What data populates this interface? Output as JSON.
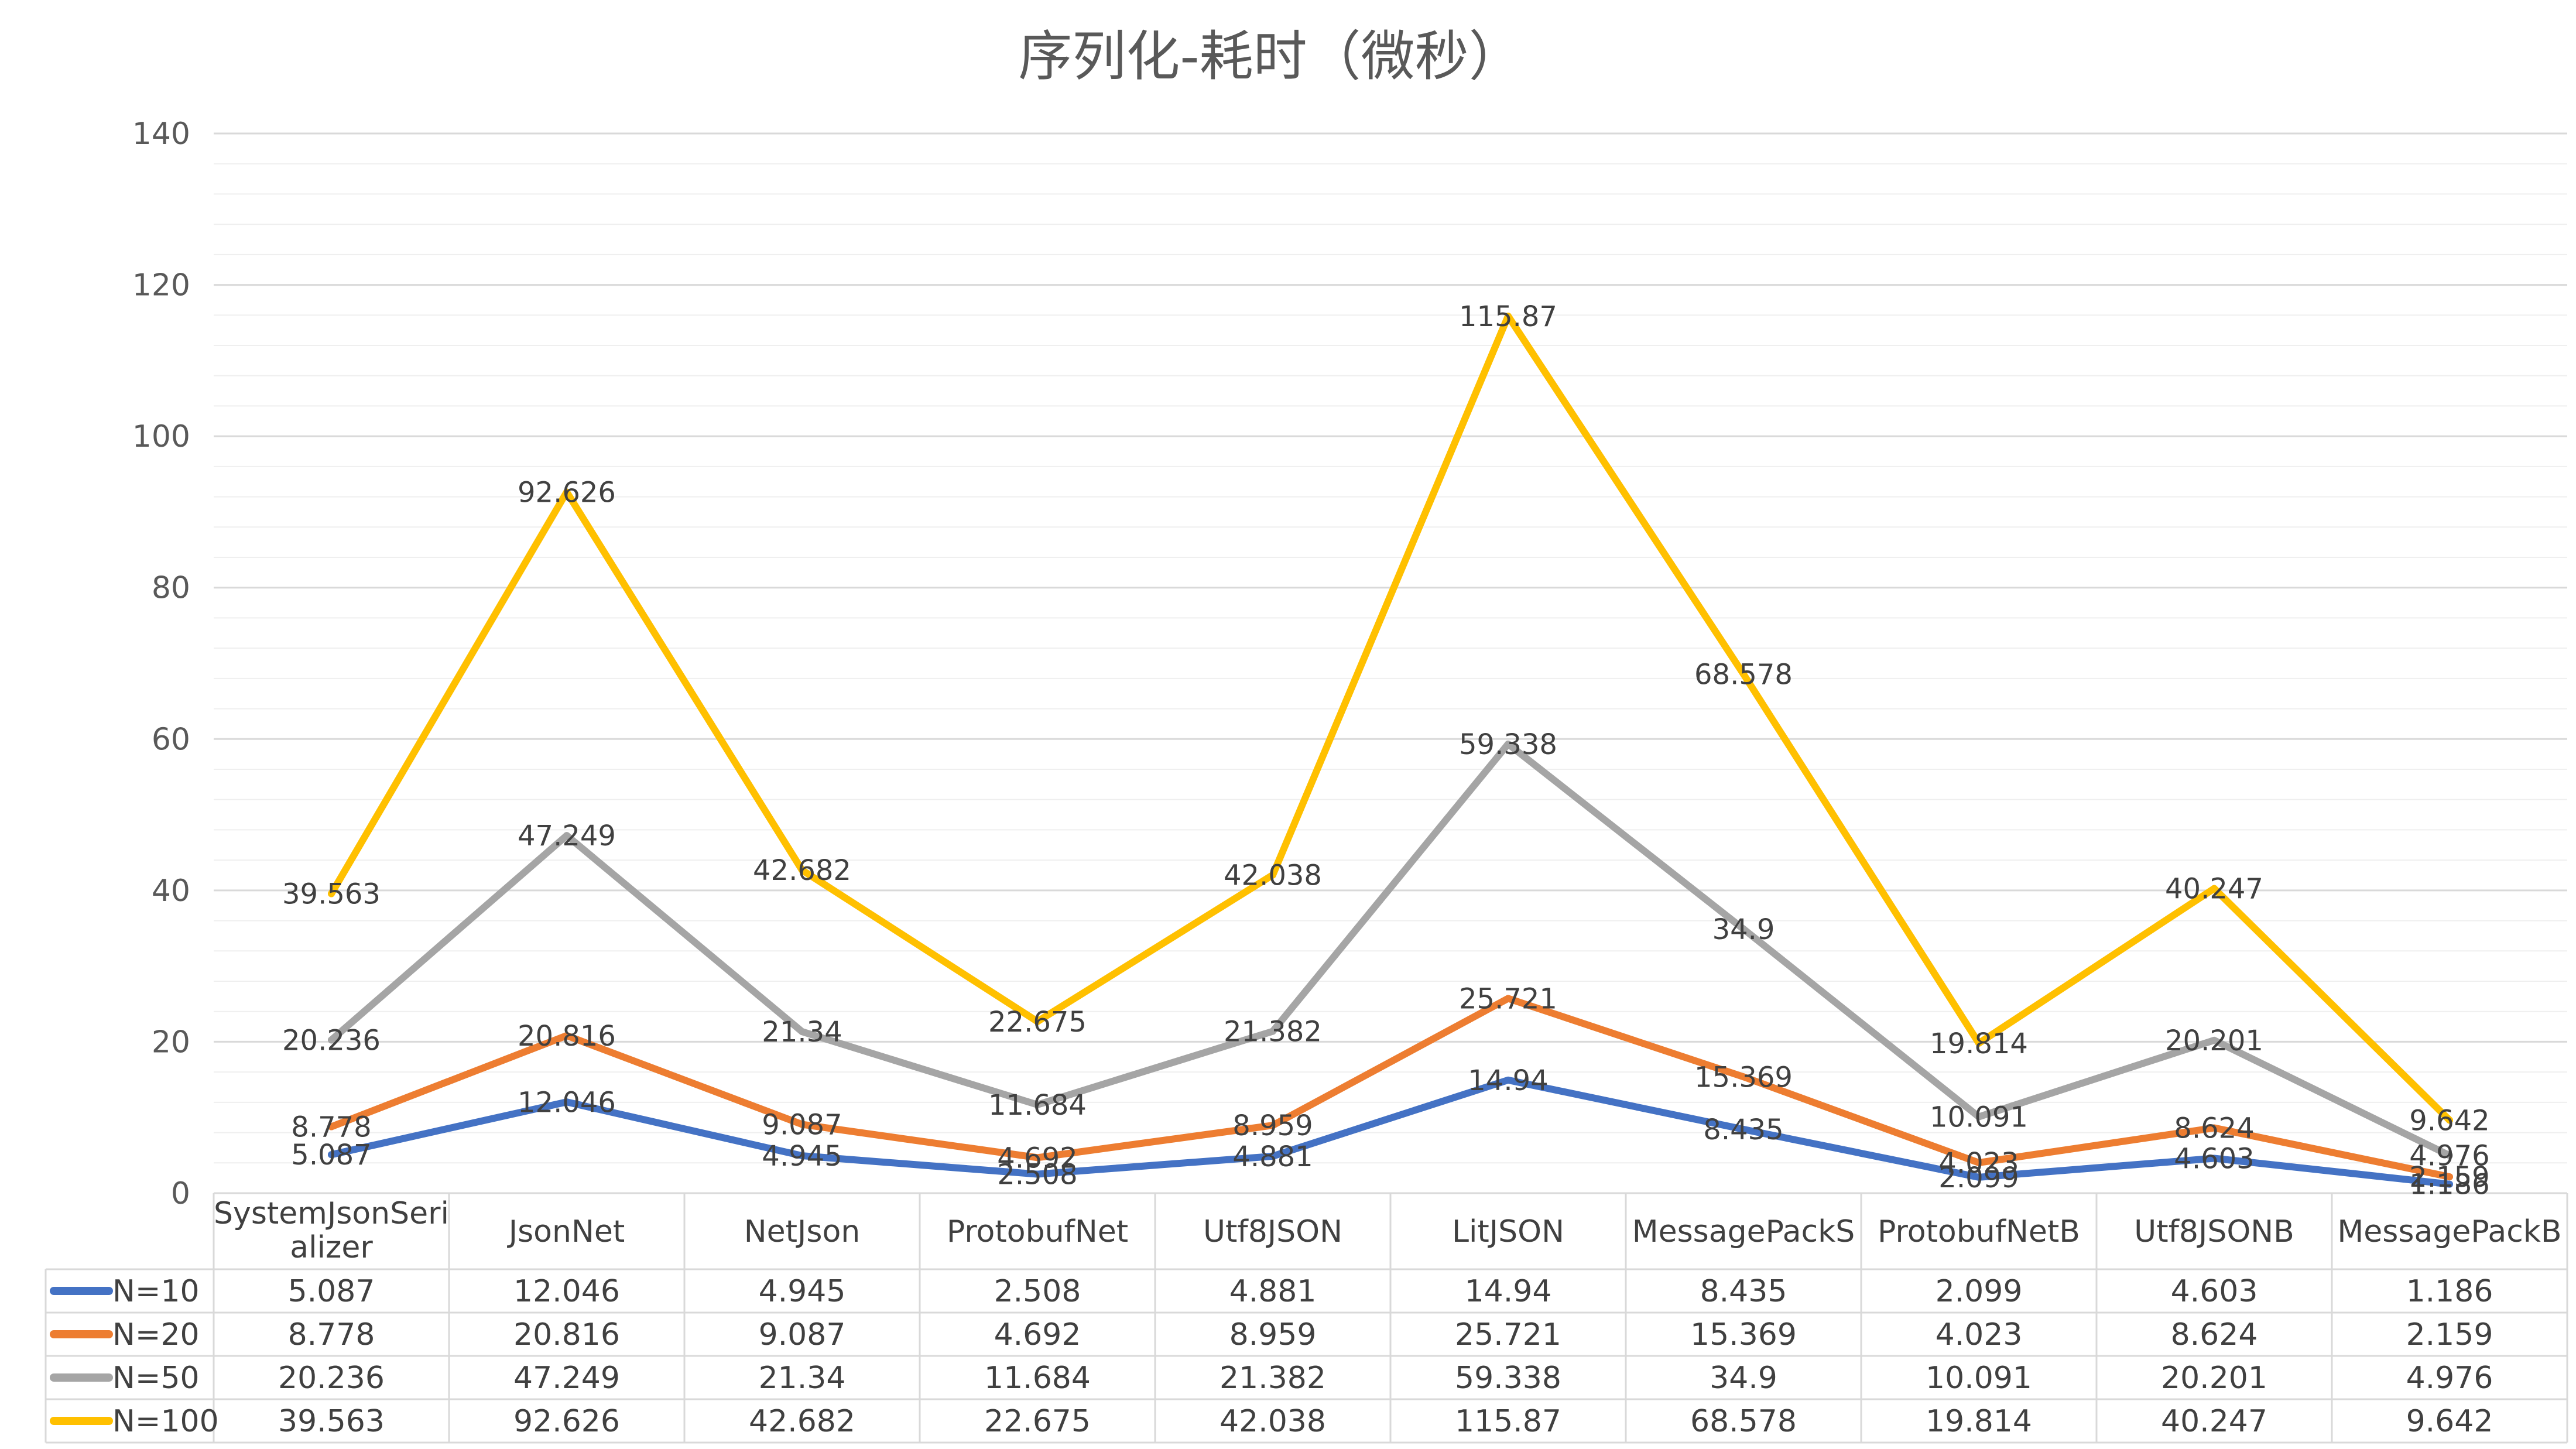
{
  "chart_data": {
    "type": "line",
    "title": "序列化-耗时（微秒）",
    "categories": [
      "SystemJsonSerializer",
      "JsonNet",
      "NetJson",
      "ProtobufNet",
      "Utf8JSON",
      "LitJSON",
      "MessagePackS",
      "ProtobufNetB",
      "Utf8JSONB",
      "MessagePackB"
    ],
    "category_labels": [
      [
        "SystemJsonSeri",
        "alizer"
      ],
      [
        "JsonNet"
      ],
      [
        "NetJson"
      ],
      [
        "ProtobufNet"
      ],
      [
        "Utf8JSON"
      ],
      [
        "LitJSON"
      ],
      [
        "MessagePackS"
      ],
      [
        "ProtobufNetB"
      ],
      [
        "Utf8JSONB"
      ],
      [
        "MessagePackB"
      ]
    ],
    "ylim": [
      0,
      140
    ],
    "yticks": [
      0,
      20,
      40,
      60,
      80,
      100,
      120,
      140
    ],
    "grid": true,
    "legend": "data-table",
    "series": [
      {
        "name": "N=10",
        "color": "#4472C4",
        "values": [
          5.087,
          12.046,
          4.945,
          2.508,
          4.881,
          14.94,
          8.435,
          2.099,
          4.603,
          1.186
        ],
        "labels": [
          "5.087",
          "12.046",
          "4.945",
          "2.508",
          "4.881",
          "14.94",
          "8.435",
          "2.099",
          "4.603",
          "1.186"
        ]
      },
      {
        "name": "N=20",
        "color": "#ED7D31",
        "values": [
          8.778,
          20.816,
          9.087,
          4.692,
          8.959,
          25.721,
          15.369,
          4.023,
          8.624,
          2.159
        ],
        "labels": [
          "8.778",
          "20.816",
          "9.087",
          "4.692",
          "8.959",
          "25.721",
          "15.369",
          "4.023",
          "8.624",
          "2.159"
        ]
      },
      {
        "name": "N=50",
        "color": "#A5A5A5",
        "values": [
          20.236,
          47.249,
          21.34,
          11.684,
          21.382,
          59.338,
          34.9,
          10.091,
          20.201,
          4.976
        ],
        "labels": [
          "20.236",
          "47.249",
          "21.34",
          "11.684",
          "21.382",
          "59.338",
          "34.9",
          "10.091",
          "20.201",
          "4.976"
        ]
      },
      {
        "name": "N=100",
        "color": "#FFC000",
        "values": [
          39.563,
          92.626,
          42.682,
          22.675,
          42.038,
          115.87,
          68.578,
          19.814,
          40.247,
          9.642
        ],
        "labels": [
          "39.563",
          "92.626",
          "42.682",
          "22.675",
          "42.038",
          "115.87",
          "68.578",
          "19.814",
          "40.247",
          "9.642"
        ]
      }
    ]
  }
}
